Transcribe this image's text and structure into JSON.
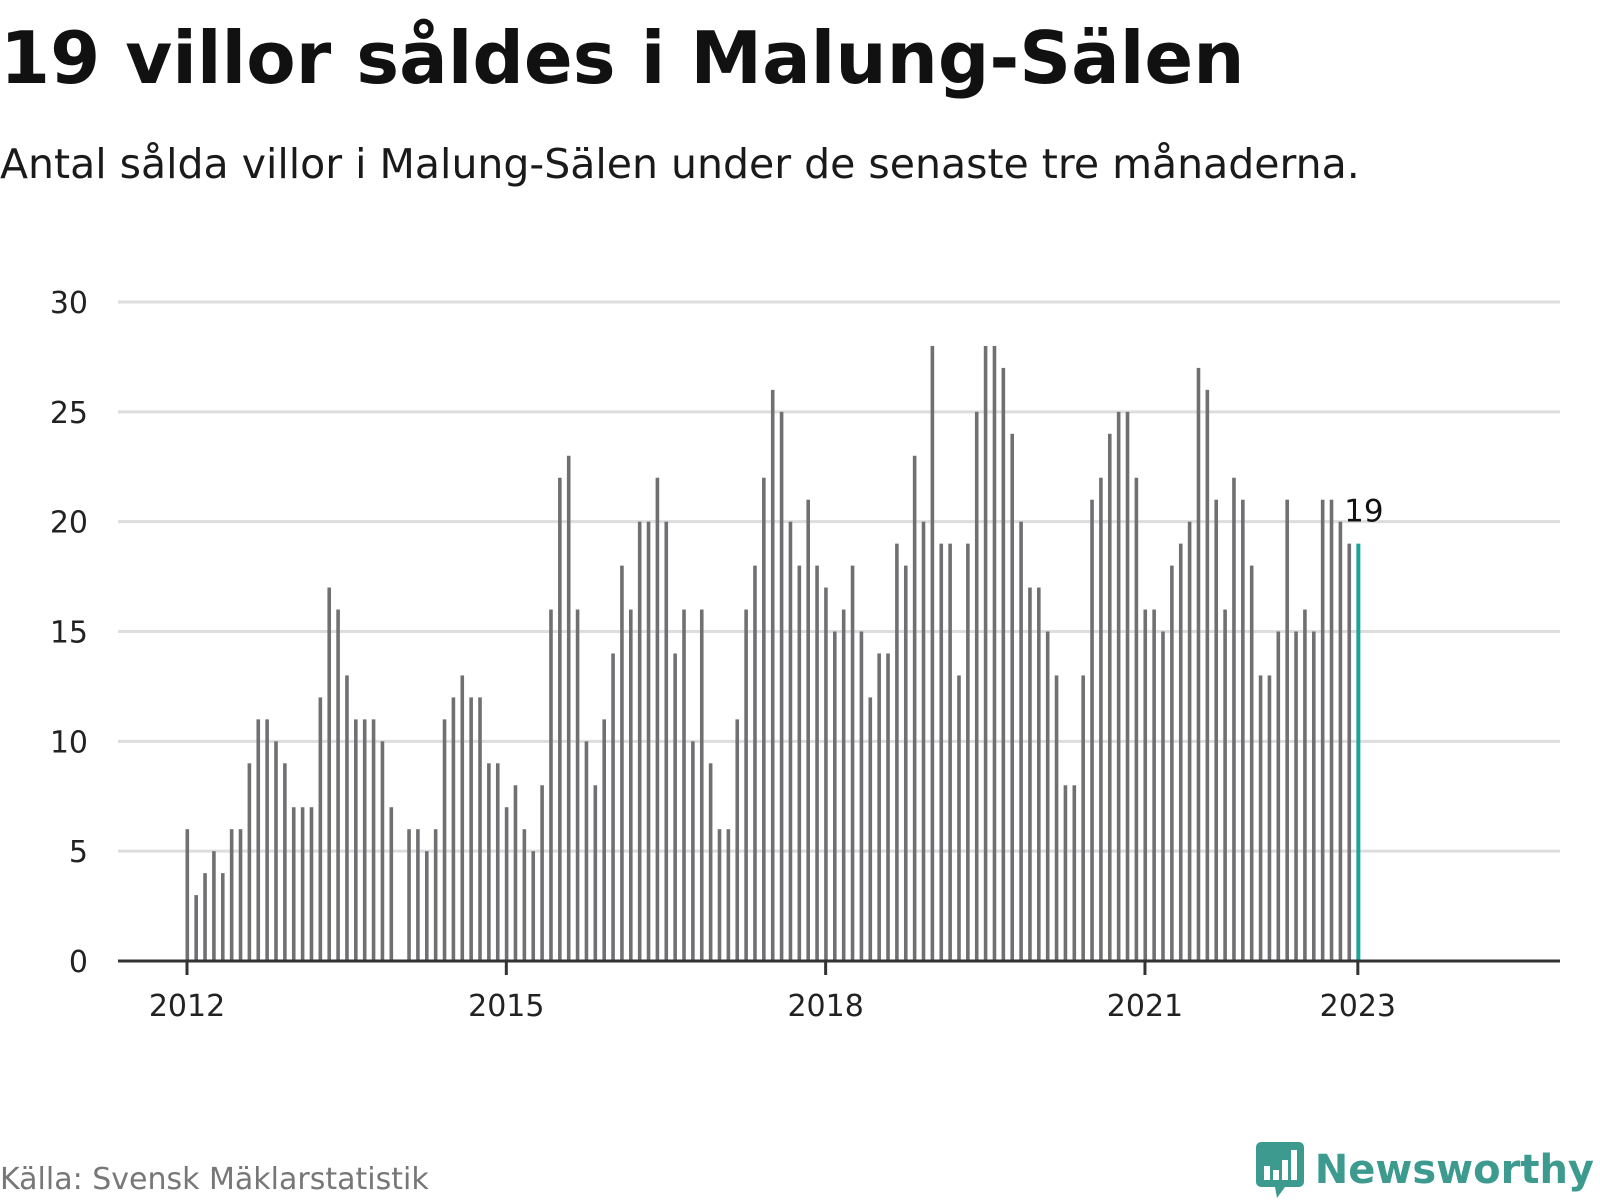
{
  "header": {
    "title": "19 villor såldes i Malung-Sälen",
    "subtitle": "Antal sålda villor i Malung-Sälen under de senaste tre månaderna."
  },
  "footer": {
    "source": "Källa: Svensk Mäklarstatistik",
    "brand": "Newsworthy",
    "brand_icon": "newsworthy-logo-icon"
  },
  "colors": {
    "bar": "#707073",
    "highlight": "#1aa599",
    "grid": "#dddddd",
    "axis": "#333333",
    "brand": "#3c9a8e"
  },
  "chart_data": {
    "type": "bar",
    "x_start": "2012-01",
    "x_step": "1 month",
    "xlabel": "",
    "ylabel": "",
    "ylim": [
      0,
      30
    ],
    "yticks": [
      0,
      5,
      10,
      15,
      20,
      25,
      30
    ],
    "xticks": [
      {
        "label": "2012",
        "index": 0
      },
      {
        "label": "2015",
        "index": 36
      },
      {
        "label": "2018",
        "index": 72
      },
      {
        "label": "2021",
        "index": 108
      },
      {
        "label": "2023",
        "index": 132
      }
    ],
    "grid": true,
    "values": [
      6,
      3,
      4,
      5,
      4,
      6,
      6,
      9,
      11,
      11,
      10,
      9,
      7,
      7,
      7,
      12,
      17,
      16,
      13,
      11,
      11,
      11,
      10,
      7,
      null,
      6,
      6,
      5,
      6,
      11,
      12,
      13,
      12,
      12,
      9,
      9,
      7,
      8,
      6,
      5,
      8,
      16,
      22,
      23,
      16,
      10,
      8,
      11,
      14,
      18,
      16,
      20,
      20,
      22,
      20,
      14,
      16,
      10,
      16,
      9,
      6,
      6,
      11,
      16,
      18,
      22,
      26,
      25,
      20,
      18,
      21,
      18,
      17,
      15,
      16,
      18,
      15,
      12,
      14,
      14,
      19,
      18,
      23,
      20,
      28,
      19,
      19,
      13,
      19,
      25,
      28,
      28,
      27,
      24,
      20,
      17,
      17,
      15,
      13,
      8,
      8,
      13,
      21,
      22,
      24,
      25,
      25,
      22,
      16,
      16,
      15,
      18,
      19,
      20,
      27,
      26,
      21,
      16,
      22,
      21,
      18,
      13,
      13,
      15,
      21,
      15,
      16,
      15,
      21,
      21,
      20,
      19,
      19
    ],
    "highlight_index": 132,
    "highlight_label": "19"
  }
}
